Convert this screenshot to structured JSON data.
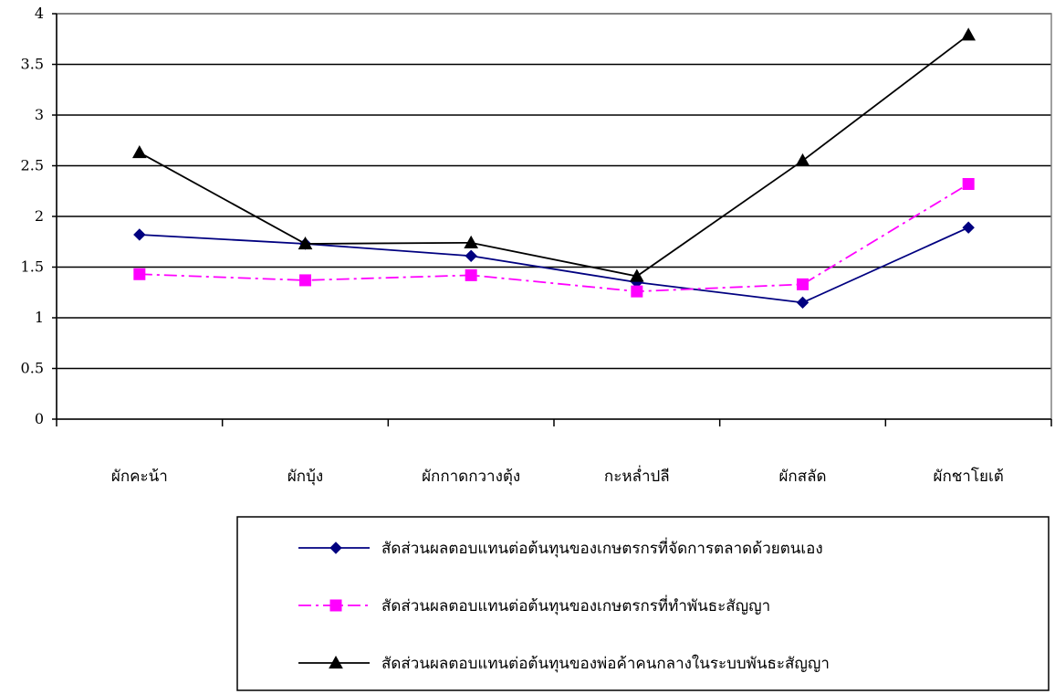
{
  "chart_data": {
    "type": "line",
    "categories": [
      "ผักคะน้า",
      "ผักบุ้ง",
      "ผักกาดกวางตุ้ง",
      "กะหล่ำปลี",
      "ผักสลัด",
      "ผักชาโยเต้"
    ],
    "series": [
      {
        "name": "สัดส่วนผลตอบแทนต่อต้นทุนของเกษตรกรที่จัดการตลาดด้วยตนเอง",
        "values": [
          1.82,
          1.73,
          1.61,
          1.35,
          1.15,
          1.89
        ],
        "color": "#000080",
        "marker": "diamond",
        "line_style": "solid"
      },
      {
        "name": "สัดส่วนผลตอบแทนต่อต้นทุนของเกษตรกรที่ทำพันธะสัญญา",
        "values": [
          1.43,
          1.37,
          1.42,
          1.26,
          1.33,
          2.32
        ],
        "color": "#FF00FF",
        "marker": "square",
        "line_style": "dash-dot"
      },
      {
        "name": "สัดส่วนผลตอบแทนต่อต้นทุนของพ่อค้าคนกลางในระบบพันธะสัญญา",
        "values": [
          2.63,
          1.73,
          1.74,
          1.41,
          2.55,
          3.79
        ],
        "color": "#000000",
        "marker": "triangle",
        "line_style": "solid"
      }
    ],
    "y_ticks": [
      "0",
      "0.5",
      "1",
      "1.5",
      "2",
      "2.5",
      "3",
      "3.5",
      "4"
    ],
    "ylim": [
      0,
      4
    ],
    "grid": true,
    "legend_position": "bottom-right",
    "title": "",
    "xlabel": "",
    "ylabel": ""
  }
}
